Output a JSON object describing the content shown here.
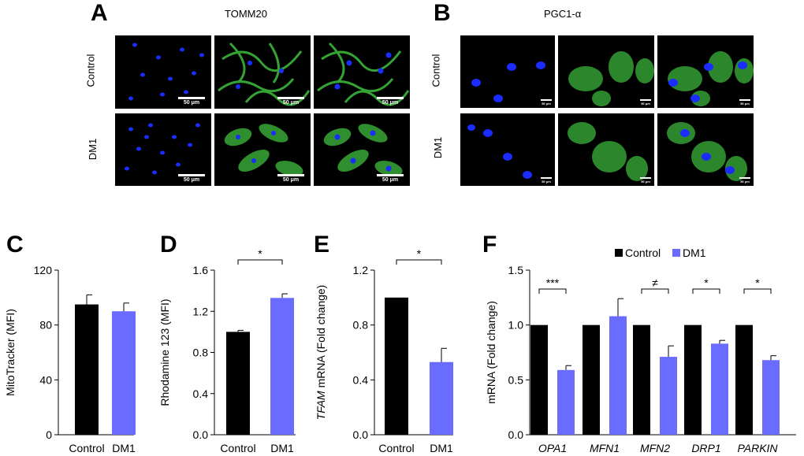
{
  "panels": {
    "a": {
      "letter": "A",
      "title": "TOMM20",
      "row_labels": [
        "Control",
        "DM1"
      ],
      "scale_label": "50 μm"
    },
    "b": {
      "letter": "B",
      "title": "PGC1-α",
      "row_labels": [
        "Control",
        "DM1"
      ],
      "scale_label": "50 μm"
    }
  },
  "colors": {
    "control": "#000000",
    "dm1": "#6a6cff",
    "dapi": "#1a2cff",
    "stain": "#3fbf3f"
  },
  "chart_data": [
    {
      "type": "bar",
      "panel": "C",
      "categories": [
        "Control",
        "DM1"
      ],
      "values": [
        95,
        90
      ],
      "errors": [
        7,
        6
      ],
      "ylabel": "MitoTracker (MFI)",
      "ylim": [
        0,
        120
      ],
      "yticks": [
        "0",
        "40",
        "80",
        "120"
      ],
      "significance": []
    },
    {
      "type": "bar",
      "panel": "D",
      "categories": [
        "Control",
        "DM1"
      ],
      "values": [
        1.0,
        1.33
      ],
      "errors": [
        0.015,
        0.04
      ],
      "ylabel": "Rhodamine 123 (MFI)",
      "ylim": [
        0,
        1.6
      ],
      "yticks": [
        "0.0",
        "0.4",
        "0.8",
        "1.2",
        "1.6"
      ],
      "significance": [
        "*"
      ]
    },
    {
      "type": "bar",
      "panel": "E",
      "categories": [
        "Control",
        "DM1"
      ],
      "values": [
        1.0,
        0.53
      ],
      "errors": [
        0,
        0.1
      ],
      "ylabel_italic": "TFAM",
      "ylabel": " mRNA (Fold change)",
      "ylim": [
        0,
        1.2
      ],
      "yticks": [
        "0.0",
        "0.4",
        "0.8",
        "1.2"
      ],
      "significance": [
        "*"
      ]
    },
    {
      "type": "bar",
      "panel": "F",
      "categories": [
        "OPA1",
        "MFN1",
        "MFN2",
        "DRP1",
        "PARKIN"
      ],
      "series": [
        {
          "name": "Control",
          "values": [
            1.0,
            1.0,
            1.0,
            1.0,
            1.0
          ]
        },
        {
          "name": "DM1",
          "values": [
            0.59,
            1.08,
            0.71,
            0.83,
            0.68
          ],
          "errors": [
            0.04,
            0.16,
            0.1,
            0.03,
            0.04
          ]
        }
      ],
      "ylabel": "mRNA (Fold change)",
      "ylim": [
        0,
        1.5
      ],
      "yticks": [
        "0.0",
        "0.5",
        "1.0",
        "1.5"
      ],
      "significance": [
        "***",
        "",
        "≠",
        "*",
        "*"
      ],
      "legend": "top"
    }
  ]
}
